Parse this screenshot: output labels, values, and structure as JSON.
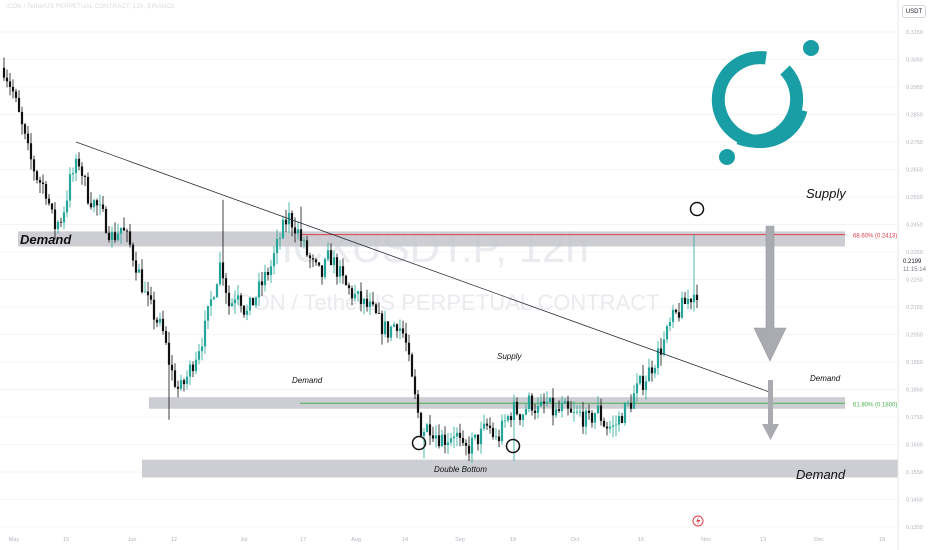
{
  "header": {
    "title": "ICON / TetherUS PERPETUAL CONTRACT, 12h, BINANCE"
  },
  "currency": "USDT",
  "current_price": {
    "value": "0.2199",
    "countdown": "11:15:14"
  },
  "watermark": {
    "symbol": "ICXUSDT.P, 12h",
    "name": "ICON / TetherUS PERPETUAL CONTRACT"
  },
  "chart_data": {
    "type": "candlestick",
    "ylim": [
      0.1325,
      0.325
    ],
    "y_ticks": [
      "0.3150",
      "0.3050",
      "0.2950",
      "0.2850",
      "0.2750",
      "0.2650",
      "0.2550",
      "0.2450",
      "0.2350",
      "0.2250",
      "0.2150",
      "0.2050",
      "0.1950",
      "0.1850",
      "0.1750",
      "0.1650",
      "0.1550",
      "0.1450",
      "0.1350"
    ],
    "x_ticks": [
      "May",
      "15",
      "Jun",
      "12",
      "Jul",
      "17",
      "Aug",
      "14",
      "Sep",
      "18",
      "Oct",
      "16",
      "Nov",
      "13",
      "Dec",
      "18"
    ],
    "close_path": [
      0.302,
      0.294,
      0.282,
      0.27,
      0.262,
      0.258,
      0.244,
      0.248,
      0.262,
      0.268,
      0.256,
      0.252,
      0.247,
      0.24,
      0.244,
      0.238,
      0.229,
      0.218,
      0.212,
      0.206,
      0.192,
      0.184,
      0.19,
      0.198,
      0.206,
      0.22,
      0.232,
      0.215,
      0.222,
      0.212,
      0.218,
      0.224,
      0.23,
      0.24,
      0.248,
      0.244,
      0.236,
      0.23,
      0.226,
      0.234,
      0.228,
      0.222,
      0.219,
      0.216,
      0.214,
      0.209,
      0.206,
      0.21,
      0.204,
      0.185,
      0.17,
      0.172,
      0.168,
      0.167,
      0.17,
      0.162,
      0.165,
      0.168,
      0.172,
      0.166,
      0.173,
      0.178,
      0.176,
      0.181,
      0.177,
      0.18,
      0.176,
      0.178,
      0.175,
      0.176,
      0.173,
      0.178,
      0.172,
      0.171,
      0.176,
      0.18,
      0.186,
      0.19,
      0.196,
      0.202,
      0.21,
      0.214,
      0.218,
      0.221
    ],
    "annotations": [
      {
        "text": "Demand"
      },
      {
        "text": "Demand"
      },
      {
        "text": "Supply"
      },
      {
        "text": "Double Bottom"
      },
      {
        "text": "Supply"
      },
      {
        "text": "Demand"
      },
      {
        "text": "Demand"
      }
    ],
    "fib_levels": [
      {
        "label": "68.60% (0.2413)",
        "value": 0.2413,
        "color": "#e0404a"
      },
      {
        "label": "61.80% (0.1800)",
        "value": 0.18,
        "color": "#4caf50"
      }
    ],
    "zones": [
      {
        "name": "upper-supply-demand-zone",
        "y_top": 0.2425,
        "y_bottom": 0.237
      },
      {
        "name": "middle-supply-demand-zone",
        "y_top": 0.1822,
        "y_bottom": 0.178
      },
      {
        "name": "lower-demand-zone",
        "y_top": 0.1595,
        "y_bottom": 0.153
      }
    ],
    "trendline": {
      "from": 0.275,
      "to": 0.184
    },
    "colors": {
      "up": "#26a69a",
      "down": "#111111",
      "logo": "#1a9ea6",
      "arrow": "#a9abb1"
    }
  }
}
